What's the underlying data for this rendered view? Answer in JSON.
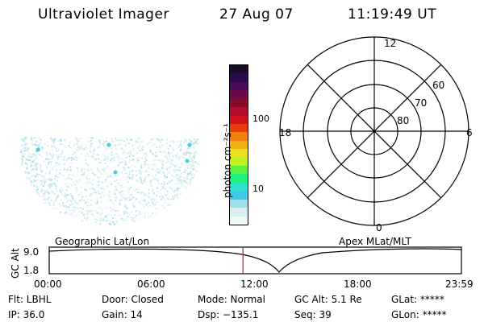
{
  "header": {
    "instrument": "Ultraviolet Imager",
    "date": "27 Aug 07",
    "time": "11:19:49 UT"
  },
  "colorbar": {
    "unit_label": "photon cm⁻²s⁻¹",
    "ticks": [
      "100",
      "10"
    ],
    "colors": [
      "#1a0a2a",
      "#2a0a4a",
      "#4a0a5a",
      "#6a0a4a",
      "#8a0a2a",
      "#b0102a",
      "#d01020",
      "#e83a10",
      "#f08010",
      "#f0b010",
      "#e8e020",
      "#c0f020",
      "#60f040",
      "#20f080",
      "#30e0d0",
      "#40c8e8",
      "#a0e0e8",
      "#d8f0f0",
      "#f0f8f8"
    ]
  },
  "polar_plot": {
    "hour_labels": [
      "12",
      "18",
      "6",
      "0"
    ],
    "lat_labels": [
      "60",
      "70",
      "80"
    ]
  },
  "timeline": {
    "left_label": "Geographic Lat/Lon",
    "right_label": "Apex MLat/MLT",
    "ylabel": "GC Alt",
    "y_ticks": [
      "9.0",
      "1.8"
    ],
    "x_ticks": [
      "00:00",
      "06:00",
      "12:00",
      "18:00",
      "23:59"
    ],
    "current_time_fraction": 0.47
  },
  "status": {
    "flt": "Flt: LBHL",
    "ip": "IP: 36.0",
    "door": "Door: Closed",
    "gain": "Gain: 14",
    "mode": "Mode: Normal",
    "dsp": "Dsp: −135.1",
    "gc_alt": "GC Alt: 5.1 Re",
    "seq": "Seq: 39",
    "glat": "GLat: *****",
    "glon": "GLon: *****"
  }
}
